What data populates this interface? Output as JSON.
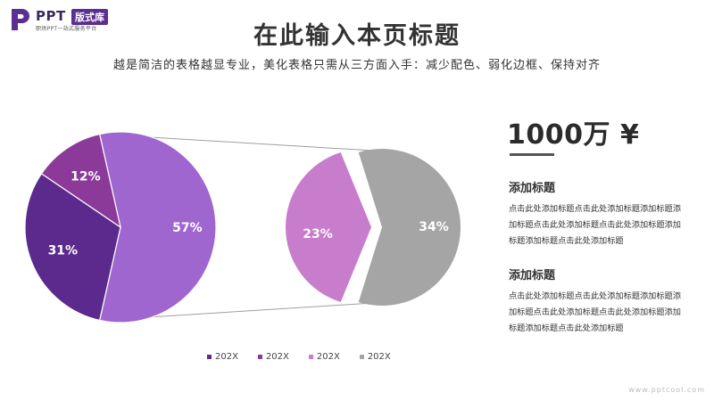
{
  "logo": {
    "ppt": "PPT",
    "badge": "版式库",
    "sub": "职场PPT一站式服务平台"
  },
  "page": {
    "title": "在此输入本页标题",
    "subtitle": "越是简洁的表格越显专业，美化表格只需从三方面入手：减少配色、弱化边框、保持对齐"
  },
  "side": {
    "big_number": "1000万 ¥",
    "blocks": [
      {
        "title": "添加标题",
        "text": "点击此处添加标题点击此处添加标题添加标题添加标题点击此处添加标题点击此处添加标题添加标题添加标题点击此处添加标题"
      },
      {
        "title": "添加标题",
        "text": "点击此处添加标题点击此处添加标题添加标题添加标题点击此处添加标题点击此处添加标题添加标题添加标题点击此处添加标题"
      }
    ]
  },
  "colors": {
    "slice_31": "#5c2a8c",
    "slice_12": "#8b3a9a",
    "slice_57": "#a066d0",
    "slice_23": "#c77ccc",
    "slice_34": "#a5a5a5"
  },
  "chart_data": {
    "type": "pie",
    "main_pie": {
      "slices": [
        {
          "label": "57%",
          "value": 57,
          "color": "#a066d0"
        },
        {
          "label": "31%",
          "value": 31,
          "color": "#5c2a8c"
        },
        {
          "label": "12%",
          "value": 12,
          "color": "#8b3a9a"
        }
      ]
    },
    "breakdown_pie": {
      "slices": [
        {
          "label": "23%",
          "value": 23,
          "color": "#c77ccc"
        },
        {
          "label": "34%",
          "value": 34,
          "color": "#a5a5a5"
        }
      ]
    },
    "legend": [
      {
        "label": "202X",
        "color": "#5c2a8c"
      },
      {
        "label": "202X",
        "color": "#8b3a9a"
      },
      {
        "label": "202X",
        "color": "#c77ccc"
      },
      {
        "label": "202X",
        "color": "#a5a5a5"
      }
    ]
  },
  "watermark": "www.pptcool.com"
}
